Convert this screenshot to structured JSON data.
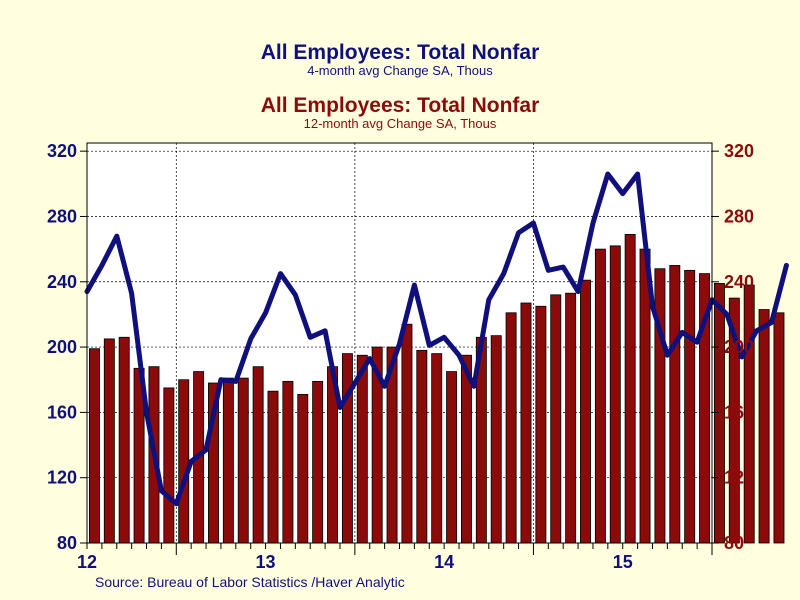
{
  "header": {
    "title_left": "All Employees: Total Nonfar",
    "subtitle_left": "4-month avg Change    SA, Thous",
    "title_right": "All Employees: Total Nonfar",
    "subtitle_right": "12-month avg Change    SA, Thous"
  },
  "footer": {
    "source": "Source:  Bureau of Labor Statistics /Haver Analytic"
  },
  "colors": {
    "background": "#ffffe0",
    "plot_background": "#ffffff",
    "line_series": "#10107c",
    "bar_series": "#8b0b0b",
    "left_axis_text": "#10107c",
    "right_axis_text": "#8b0b0b"
  },
  "chart_data": {
    "type": "bar+line",
    "grid": true,
    "x_tick_labels": [
      "12",
      "13",
      "14",
      "15"
    ],
    "y_left": {
      "ticks": [
        80,
        120,
        160,
        200,
        240,
        280,
        320
      ],
      "ylim": [
        80,
        325
      ]
    },
    "y_right": {
      "ticks": [
        80,
        120,
        160,
        200,
        240,
        280,
        320
      ],
      "ylim": [
        80,
        325
      ]
    },
    "series": [
      {
        "name": "All Employees: Total Nonfar 12-month avg Change",
        "type": "bar",
        "axis": "right",
        "values": [
          199,
          205,
          206,
          187,
          188,
          175,
          180,
          185,
          178,
          181,
          181,
          188,
          173,
          179,
          171,
          179,
          188,
          196,
          195,
          200,
          200,
          214,
          198,
          196,
          185,
          195,
          206,
          207,
          221,
          227,
          225,
          232,
          233,
          241,
          260,
          262,
          269,
          260,
          248,
          250,
          247,
          245,
          239,
          230,
          238,
          223,
          221
        ]
      },
      {
        "name": "All Employees: Total Nonfar 4-month avg Change",
        "type": "line",
        "axis": "left",
        "values": [
          234,
          250,
          268,
          233,
          160,
          112,
          104,
          130,
          137,
          180,
          179,
          205,
          221,
          245,
          232,
          206,
          210,
          163,
          178,
          193,
          176,
          202,
          238,
          201,
          206,
          195,
          176,
          229,
          245,
          270,
          276,
          247,
          249,
          234,
          276,
          306,
          294,
          306,
          225,
          195,
          209,
          203,
          229,
          220,
          194,
          210,
          215,
          250
        ]
      }
    ]
  }
}
